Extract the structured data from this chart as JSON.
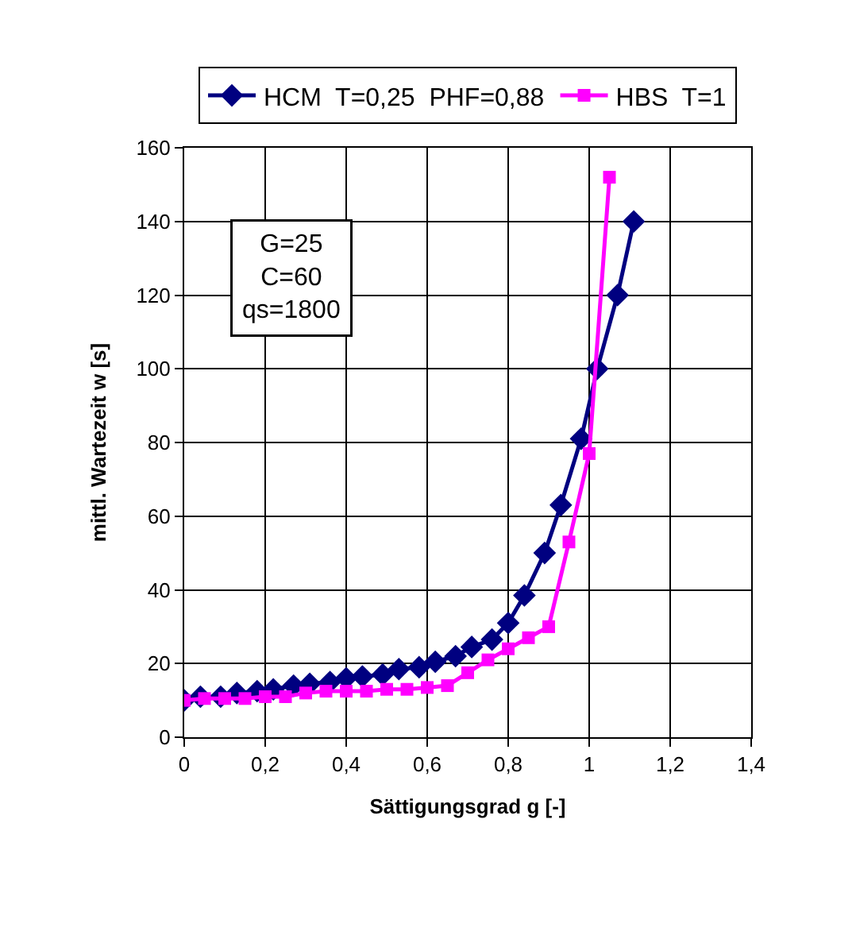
{
  "chart_data": {
    "type": "line",
    "xlabel": "Sättigungsgrad g [-]",
    "ylabel": "mittl. Wartezeit w [s]",
    "xlim": [
      0,
      1.4
    ],
    "xticks": [
      0,
      {
        "value": 0.2,
        "label": "0,2"
      },
      {
        "value": 0.4,
        "label": "0,4"
      },
      {
        "value": 0.6,
        "label": "0,6"
      },
      {
        "value": 0.8,
        "label": "0,8"
      },
      1,
      {
        "value": 1.2,
        "label": "1,2"
      },
      {
        "value": 1.4,
        "label": "1,4"
      }
    ],
    "ylim": [
      0,
      160
    ],
    "yticks": [
      0,
      20,
      40,
      60,
      80,
      100,
      120,
      140,
      160
    ],
    "grid": true,
    "legend": "top",
    "annotations": [
      "G=25\nC=60\nqs=1800"
    ],
    "series": [
      {
        "name": "HCM  T=0,25  PHF=0,88",
        "color": "#000080",
        "marker": "diamond",
        "x": [
          0,
          0.04,
          0.09,
          0.13,
          0.18,
          0.22,
          0.27,
          0.31,
          0.36,
          0.4,
          0.44,
          0.49,
          0.53,
          0.58,
          0.62,
          0.67,
          0.71,
          0.76,
          0.8,
          0.84,
          0.89,
          0.93,
          0.98,
          1.02,
          1.07,
          1.11
        ],
        "values": [
          10,
          11,
          11,
          12,
          12.5,
          13,
          14,
          14.5,
          15,
          16,
          16.5,
          17,
          18.5,
          19,
          20.5,
          22,
          24.5,
          26.5,
          31,
          38.5,
          50,
          63,
          81,
          100,
          120,
          140
        ]
      },
      {
        "name": "HBS  T=1",
        "color": "#ff00ff",
        "marker": "square",
        "x": [
          0,
          0.05,
          0.1,
          0.15,
          0.2,
          0.25,
          0.3,
          0.35,
          0.4,
          0.45,
          0.5,
          0.55,
          0.6,
          0.65,
          0.7,
          0.75,
          0.8,
          0.85,
          0.9,
          0.95,
          1,
          1.05
        ],
        "values": [
          10,
          10.5,
          10.5,
          10.5,
          11,
          11,
          12,
          12.5,
          12.5,
          12.5,
          13,
          13,
          13.5,
          14,
          17.5,
          21,
          24,
          27,
          30,
          53,
          77,
          152
        ]
      }
    ]
  }
}
